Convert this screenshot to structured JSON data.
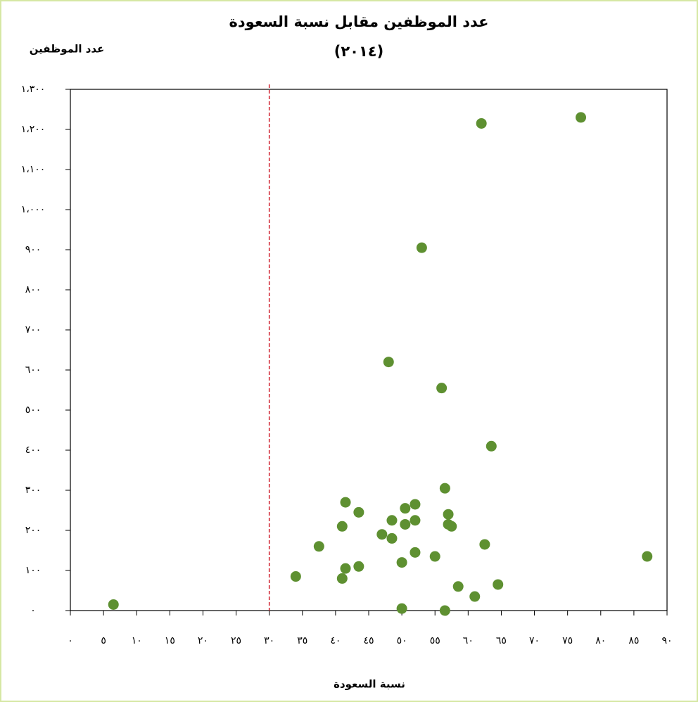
{
  "chart_data": {
    "type": "scatter",
    "title": "عدد الموظفين مقابل نسبة السعودة",
    "subtitle": "(٢٠١٤)",
    "ylabel": "عدد الموظفين",
    "xlabel": "نسبة السعودة",
    "color": "#5e9031",
    "reference_x": 30,
    "reference_color": "#d0202e",
    "xlim": [
      0,
      90
    ],
    "ylim": [
      0,
      1300
    ],
    "xticks": [
      {
        "value": 0,
        "label": "٠"
      },
      {
        "value": 5,
        "label": "٥"
      },
      {
        "value": 10,
        "label": "١٠"
      },
      {
        "value": 15,
        "label": "١٥"
      },
      {
        "value": 20,
        "label": "٢٠"
      },
      {
        "value": 25,
        "label": "٢٥"
      },
      {
        "value": 30,
        "label": "٣٠"
      },
      {
        "value": 35,
        "label": "٣٥"
      },
      {
        "value": 40,
        "label": "٤٠"
      },
      {
        "value": 45,
        "label": "٤٥"
      },
      {
        "value": 50,
        "label": "٥٠"
      },
      {
        "value": 55,
        "label": "٥٥"
      },
      {
        "value": 60,
        "label": "٦٠"
      },
      {
        "value": 65,
        "label": "٦٥"
      },
      {
        "value": 70,
        "label": "٧٠"
      },
      {
        "value": 75,
        "label": "٧٥"
      },
      {
        "value": 80,
        "label": "٨٠"
      },
      {
        "value": 85,
        "label": "٨٥"
      },
      {
        "value": 90,
        "label": "٩٠"
      }
    ],
    "yticks": [
      {
        "value": 0,
        "label": "٠"
      },
      {
        "value": 100,
        "label": "١٠٠"
      },
      {
        "value": 200,
        "label": "٢٠٠"
      },
      {
        "value": 300,
        "label": "٣٠٠"
      },
      {
        "value": 400,
        "label": "٤٠٠"
      },
      {
        "value": 500,
        "label": "٥٠٠"
      },
      {
        "value": 600,
        "label": "٦٠٠"
      },
      {
        "value": 700,
        "label": "٧٠٠"
      },
      {
        "value": 800,
        "label": "٨٠٠"
      },
      {
        "value": 900,
        "label": "٩٠٠"
      },
      {
        "value": 1000,
        "label": "١،٠٠٠"
      },
      {
        "value": 1100,
        "label": "١،١٠٠"
      },
      {
        "value": 1200,
        "label": "١،٢٠٠"
      },
      {
        "value": 1300,
        "label": "١،٣٠٠"
      }
    ],
    "x": [
      6.5,
      34,
      37.5,
      41.5,
      41,
      41,
      41.5,
      43.5,
      43.5,
      47,
      48,
      48.5,
      48.5,
      50,
      50,
      50.5,
      50.5,
      52,
      52,
      52,
      53,
      55,
      56,
      56.5,
      56.5,
      57,
      57,
      57.5,
      58.5,
      61,
      62,
      62.5,
      63.5,
      64.5,
      77,
      87
    ],
    "values": [
      15,
      85,
      160,
      270,
      210,
      80,
      105,
      245,
      110,
      190,
      620,
      225,
      180,
      120,
      5,
      255,
      215,
      265,
      225,
      145,
      905,
      135,
      555,
      0,
      305,
      240,
      215,
      210,
      60,
      35,
      1215,
      165,
      410,
      65,
      1230,
      135
    ]
  }
}
